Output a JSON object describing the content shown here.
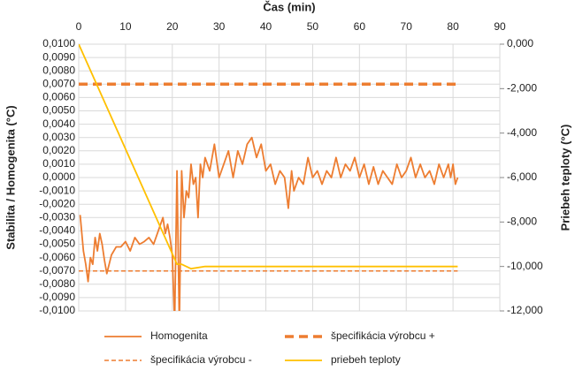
{
  "chart_data": {
    "type": "line",
    "xlabel": "Čas (min)",
    "ylabel": "Stabilita / Homogenita (°C)",
    "y2label": "Priebeh teploty (°C)",
    "xlim": [
      0,
      90
    ],
    "xticks": [
      0,
      10,
      20,
      30,
      40,
      50,
      60,
      70,
      80,
      90
    ],
    "ylim": [
      -0.01,
      0.01
    ],
    "yticks": [
      {
        "value": -0.01,
        "label": "-0,0100"
      },
      {
        "value": -0.009,
        "label": "-0,0090"
      },
      {
        "value": -0.008,
        "label": "-0,0080"
      },
      {
        "value": -0.007,
        "label": "-0,0070"
      },
      {
        "value": -0.006,
        "label": "-0,0060"
      },
      {
        "value": -0.005,
        "label": "-0,0050"
      },
      {
        "value": -0.004,
        "label": "-0,0040"
      },
      {
        "value": -0.003,
        "label": "-0,0030"
      },
      {
        "value": -0.002,
        "label": "-0,0020"
      },
      {
        "value": -0.001,
        "label": "-0,0010"
      },
      {
        "value": 0,
        "label": "0,0000"
      },
      {
        "value": 0.001,
        "label": "0,0010"
      },
      {
        "value": 0.002,
        "label": "0,0020"
      },
      {
        "value": 0.003,
        "label": "0,0030"
      },
      {
        "value": 0.004,
        "label": "0,0040"
      },
      {
        "value": 0.005,
        "label": "0,0050"
      },
      {
        "value": 0.006,
        "label": "0,0060"
      },
      {
        "value": 0.007,
        "label": "0,0070"
      },
      {
        "value": 0.008,
        "label": "0,0080"
      },
      {
        "value": 0.009,
        "label": "0,0090"
      },
      {
        "value": 0.01,
        "label": "0,0100"
      }
    ],
    "y2lim": [
      -12,
      0
    ],
    "y2ticks": [
      {
        "value": -12,
        "label": "-12,000"
      },
      {
        "value": -10,
        "label": "-10,000"
      },
      {
        "value": -8,
        "label": "-8,000"
      },
      {
        "value": -6,
        "label": "-6,000"
      },
      {
        "value": -4,
        "label": "-4,000"
      },
      {
        "value": -2,
        "label": "-2,000"
      },
      {
        "value": 0,
        "label": "0,000"
      }
    ],
    "grid": true,
    "legend": "bottom",
    "series": [
      {
        "name": "Homogenita",
        "color": "#ed7d31",
        "style": "solid",
        "width": 1.8,
        "x": [
          0.3,
          1,
          1.5,
          2,
          2.5,
          3,
          3.5,
          4,
          4.5,
          5,
          5.5,
          6,
          7,
          8,
          9,
          10,
          11,
          12,
          13,
          14,
          15,
          16,
          17,
          18,
          18.5,
          19,
          19.5,
          20,
          20.5,
          21,
          21.5,
          22,
          22.5,
          23,
          23.5,
          24,
          24.5,
          25,
          25.5,
          26,
          26.5,
          27,
          28,
          29,
          30,
          31,
          32,
          33,
          34,
          35,
          36,
          37,
          38,
          39,
          40,
          41,
          42,
          43,
          44,
          44.8,
          45.5,
          46,
          47,
          48,
          49,
          50,
          51,
          52,
          53,
          54,
          55,
          56,
          57,
          58,
          59,
          60,
          61,
          62,
          63,
          64,
          65,
          66,
          67,
          68,
          69,
          70,
          71,
          72,
          73,
          74,
          75,
          76,
          77,
          78,
          79,
          79.5,
          80,
          80.5,
          81
        ],
        "values": [
          -0.0028,
          -0.0055,
          -0.0065,
          -0.0078,
          -0.006,
          -0.0065,
          -0.0045,
          -0.0055,
          -0.0042,
          -0.005,
          -0.0062,
          -0.0072,
          -0.0058,
          -0.0052,
          -0.0052,
          -0.0048,
          -0.0055,
          -0.0045,
          -0.005,
          -0.0048,
          -0.0045,
          -0.005,
          -0.004,
          -0.003,
          -0.0042,
          -0.0035,
          -0.0045,
          -0.0058,
          -0.011,
          0.0005,
          -0.011,
          0.0005,
          -0.003,
          -0.001,
          -0.0015,
          0.001,
          -0.0005,
          0,
          -0.003,
          0.001,
          0,
          0.0015,
          0.0005,
          0.0025,
          0,
          0.001,
          0.002,
          0,
          0.002,
          0.001,
          0.0025,
          0.003,
          0.0015,
          0.0025,
          0.0005,
          0.001,
          -0.0005,
          0.0005,
          0,
          -0.0023,
          0.0005,
          -0.001,
          0,
          -0.0005,
          0.0015,
          0,
          0.0005,
          -0.0005,
          0.0005,
          0,
          0.0015,
          0,
          0.001,
          0.0005,
          0.0015,
          0,
          0.001,
          -0.0005,
          0.0008,
          -0.0005,
          0.0005,
          0,
          -0.0005,
          0.001,
          0,
          0.0005,
          0.0015,
          0,
          0.001,
          0,
          0.0005,
          -0.0005,
          0.001,
          0,
          0.001,
          0,
          0.001,
          -0.0005,
          0
        ]
      },
      {
        "name": "špecifikácia výrobcu +",
        "color": "#ed7d31",
        "style": "dashed",
        "width": 3.5,
        "x": [
          0,
          81
        ],
        "values": [
          0.007,
          0.007
        ]
      },
      {
        "name": "špecifikácia výrobcu -",
        "color": "#ed7d31",
        "style": "dashed",
        "width": 1.5,
        "x": [
          0,
          81
        ],
        "values": [
          -0.007,
          -0.007
        ]
      },
      {
        "name": "priebeh teploty",
        "color": "#ffc000",
        "style": "solid",
        "width": 1.8,
        "axis": "y2",
        "x": [
          0,
          21,
          22,
          24,
          27,
          81
        ],
        "values": [
          0,
          -9.9,
          -9.9,
          -10.1,
          -10,
          -10
        ]
      }
    ]
  }
}
